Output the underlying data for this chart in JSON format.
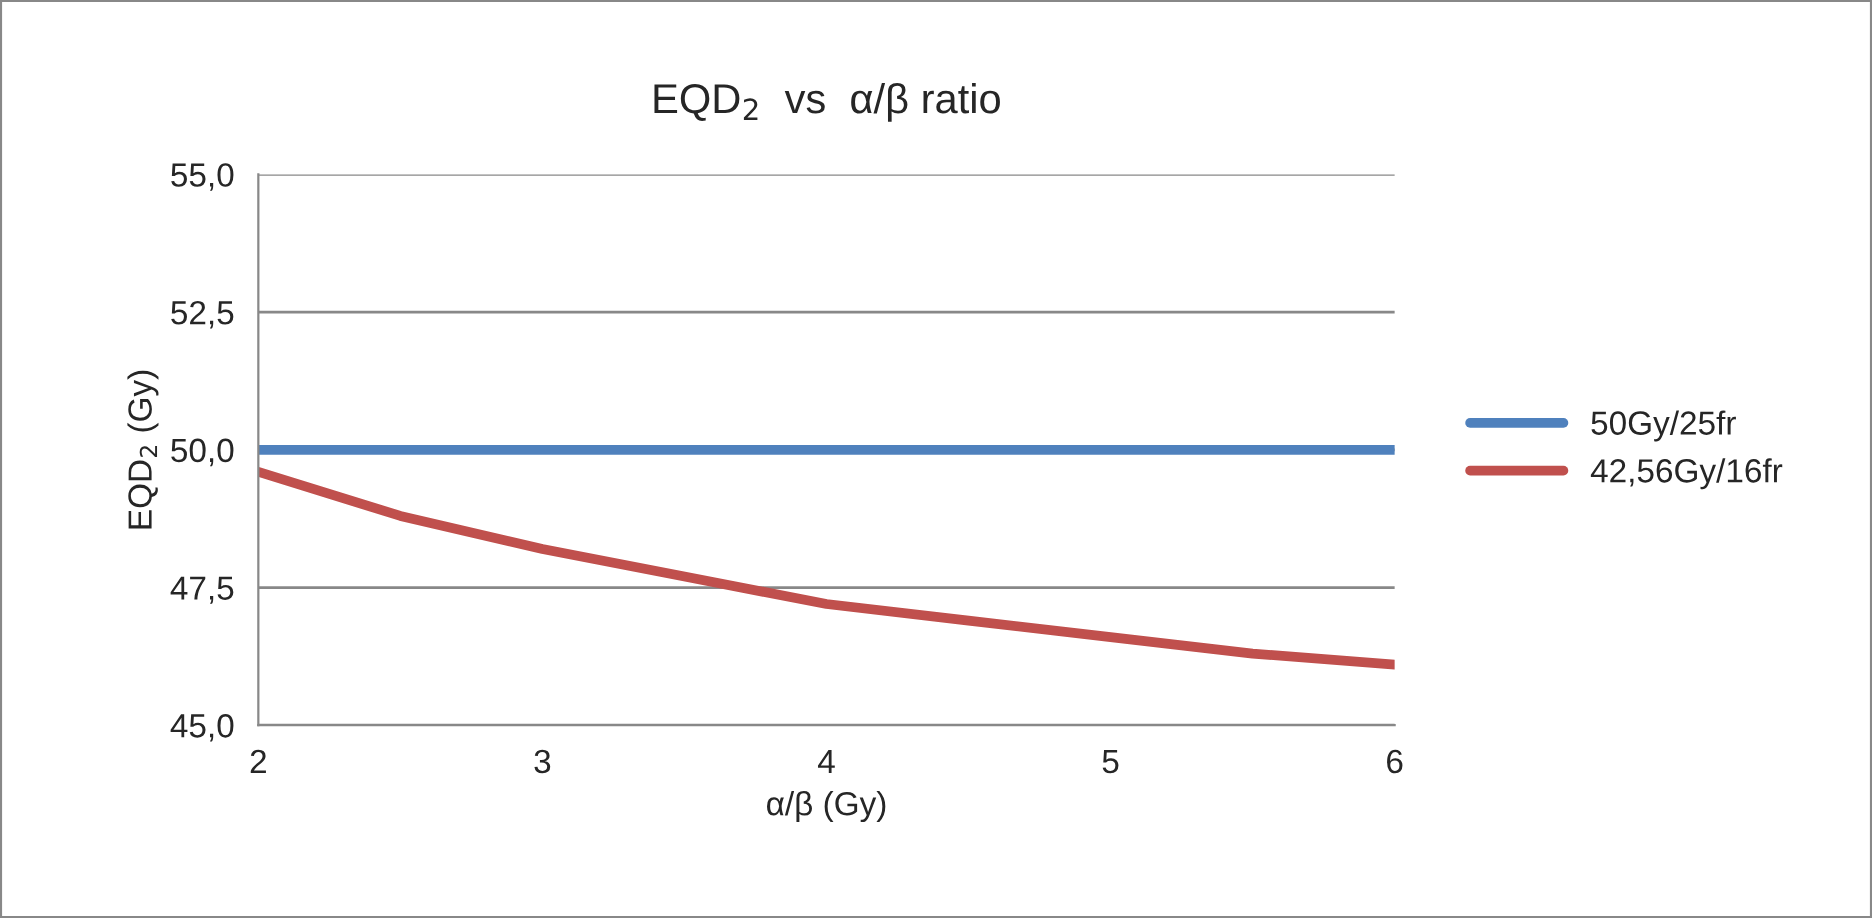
{
  "chart_data": {
    "type": "line",
    "title": "EQD$_{2}$  vs  α/β ratio",
    "xlabel": "α/β (Gy)",
    "ylabel": "EQD$_{2}$ (Gy)",
    "x": [
      2,
      2.5,
      3,
      3.5,
      4,
      4.5,
      5,
      5.5,
      6
    ],
    "series": [
      {
        "name": "50Gy/25fr",
        "color": "#4f81bd",
        "values": [
          50,
          50,
          50,
          50,
          50,
          50,
          50,
          50,
          50
        ]
      },
      {
        "name": "42,56Gy/16fr",
        "color": "#c0504d",
        "values": [
          49.6,
          48.8,
          48.2,
          47.7,
          47.2,
          46.9,
          46.6,
          46.3,
          46.1
        ]
      }
    ],
    "xlim": [
      2,
      6
    ],
    "xticks": [
      2,
      3,
      4,
      5,
      6
    ],
    "ylim": [
      45,
      55
    ],
    "yticks": [
      {
        "value": 45,
        "label": "45,0"
      },
      {
        "value": 47.5,
        "label": "47,5"
      },
      {
        "value": 50,
        "label": "50,0"
      },
      {
        "value": 52.5,
        "label": "52,5"
      },
      {
        "value": 55,
        "label": "55,0"
      }
    ],
    "grid": "y",
    "legend": "right",
    "marker": "none",
    "line_style": "solid"
  }
}
